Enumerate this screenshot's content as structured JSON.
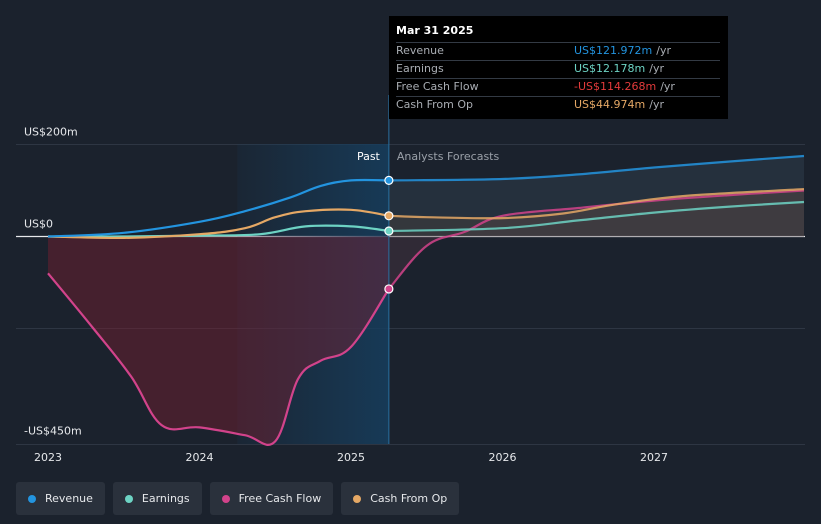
{
  "colors": {
    "background": "#1b222d",
    "revenue": "#2394df",
    "earnings": "#6dd3c4",
    "free_cash_flow": "#d2438b",
    "cash_from_op": "#e5a865",
    "past_band": "#163e5e",
    "gridline": "#2e3643"
  },
  "tooltip": {
    "date": "Mar 31 2025",
    "rows": [
      {
        "label": "Revenue",
        "value": "US$121.972m",
        "unit": "/yr",
        "color": "#2394df"
      },
      {
        "label": "Earnings",
        "value": "US$12.178m",
        "unit": "/yr",
        "color": "#6dd3c4"
      },
      {
        "label": "Free Cash Flow",
        "value": "-US$114.268m",
        "unit": "/yr",
        "color": "#e33b3b"
      },
      {
        "label": "Cash From Op",
        "value": "US$44.974m",
        "unit": "/yr",
        "color": "#e5a865"
      }
    ]
  },
  "legend": [
    {
      "label": "Revenue",
      "color": "#2394df"
    },
    {
      "label": "Earnings",
      "color": "#6dd3c4"
    },
    {
      "label": "Free Cash Flow",
      "color": "#d2438b"
    },
    {
      "label": "Cash From Op",
      "color": "#e5a865"
    }
  ],
  "chart_data": {
    "type": "line",
    "title": "",
    "y_tick_labels": [
      "US$200m",
      "US$0",
      "-US$450m"
    ],
    "y_ticks": [
      200,
      0,
      -450
    ],
    "ylim": [
      -450,
      200
    ],
    "xlim": [
      2023.0,
      2027.99
    ],
    "x_tick_labels": [
      "2023",
      "2024",
      "2025",
      "2026",
      "2027"
    ],
    "x_ticks": [
      2023,
      2024,
      2025,
      2026,
      2027
    ],
    "past_start": 2024.25,
    "divider_x": 2025.25,
    "past_label": "Past",
    "forecast_label": "Analysts Forecasts",
    "series": [
      {
        "name": "Revenue",
        "key": "revenue",
        "past": [
          [
            2023.0,
            0
          ],
          [
            2023.5,
            8
          ],
          [
            2024.0,
            32
          ],
          [
            2024.3,
            55
          ],
          [
            2024.6,
            85
          ],
          [
            2024.8,
            110
          ],
          [
            2025.0,
            122
          ],
          [
            2025.25,
            122
          ]
        ],
        "forecast": [
          [
            2025.25,
            122
          ],
          [
            2026.0,
            125
          ],
          [
            2026.5,
            135
          ],
          [
            2027.0,
            150
          ],
          [
            2027.5,
            163
          ],
          [
            2027.99,
            175
          ]
        ]
      },
      {
        "name": "Earnings",
        "key": "earnings",
        "past": [
          [
            2023.0,
            0
          ],
          [
            2023.5,
            0
          ],
          [
            2024.0,
            2
          ],
          [
            2024.4,
            5
          ],
          [
            2024.7,
            22
          ],
          [
            2025.0,
            22
          ],
          [
            2025.25,
            12
          ]
        ],
        "forecast": [
          [
            2025.25,
            12
          ],
          [
            2026.0,
            18
          ],
          [
            2026.5,
            35
          ],
          [
            2027.0,
            52
          ],
          [
            2027.5,
            65
          ],
          [
            2027.99,
            75
          ]
        ]
      },
      {
        "name": "Free Cash Flow",
        "key": "free_cash_flow",
        "past": [
          [
            2023.0,
            -80
          ],
          [
            2023.3,
            -200
          ],
          [
            2023.55,
            -305
          ],
          [
            2023.75,
            -410
          ],
          [
            2024.0,
            -415
          ],
          [
            2024.3,
            -432
          ],
          [
            2024.5,
            -445
          ],
          [
            2024.65,
            -310
          ],
          [
            2024.8,
            -270
          ],
          [
            2025.0,
            -240
          ],
          [
            2025.25,
            -114
          ]
        ],
        "forecast": [
          [
            2025.25,
            -114
          ],
          [
            2025.5,
            -20
          ],
          [
            2025.75,
            10
          ],
          [
            2026.0,
            45
          ],
          [
            2026.5,
            62
          ],
          [
            2027.0,
            78
          ],
          [
            2027.5,
            90
          ],
          [
            2027.99,
            100
          ]
        ]
      },
      {
        "name": "Cash From Op",
        "key": "cash_from_op",
        "past": [
          [
            2023.0,
            0
          ],
          [
            2023.5,
            -3
          ],
          [
            2024.0,
            5
          ],
          [
            2024.3,
            18
          ],
          [
            2024.5,
            42
          ],
          [
            2024.7,
            55
          ],
          [
            2025.0,
            58
          ],
          [
            2025.25,
            45
          ]
        ],
        "forecast": [
          [
            2025.25,
            45
          ],
          [
            2025.5,
            42
          ],
          [
            2026.0,
            40
          ],
          [
            2026.4,
            50
          ],
          [
            2026.75,
            70
          ],
          [
            2027.2,
            88
          ],
          [
            2027.99,
            103
          ]
        ]
      }
    ]
  }
}
